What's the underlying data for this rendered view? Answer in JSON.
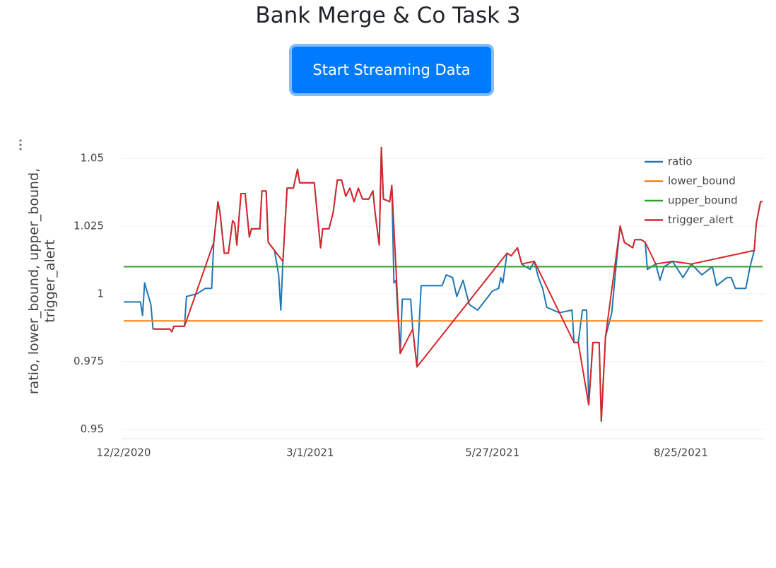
{
  "page": {
    "title": "Bank Merge & Co Task 3",
    "button": "Start Streaming Data"
  },
  "chart_data": {
    "type": "line",
    "y_label": "ratio, lower_bound, upper_bound, trigger_alert",
    "x": [
      "12/2/2020",
      "12/10/2020",
      "12/11/2020",
      "12/12/2020",
      "12/15/2020",
      "12/16/2020",
      "12/24/2020",
      "12/25/2020",
      "12/26/2020",
      "12/31/2020",
      "1/1/2021",
      "1/6/2021",
      "1/10/2021",
      "1/13/2021",
      "1/14/2021",
      "1/16/2021",
      "1/17/2021",
      "1/19/2021",
      "1/21/2021",
      "1/23/2021",
      "1/24/2021",
      "1/25/2021",
      "1/27/2021",
      "1/29/2021",
      "1/31/2021",
      "2/1/2021",
      "2/5/2021",
      "2/6/2021",
      "2/8/2021",
      "2/9/2021",
      "2/12/2021",
      "2/14/2021",
      "2/15/2021",
      "2/16/2021",
      "2/18/2021",
      "2/21/2021",
      "2/23/2021",
      "2/24/2021",
      "3/3/2021",
      "3/6/2021",
      "3/7/2021",
      "3/10/2021",
      "3/12/2021",
      "3/14/2021",
      "3/16/2021",
      "3/18/2021",
      "3/20/2021",
      "3/22/2021",
      "3/24/2021",
      "3/26/2021",
      "3/29/2021",
      "3/31/2021",
      "4/1/2021",
      "4/3/2021",
      "4/4/2021",
      "4/5/2021",
      "4/8/2021",
      "4/9/2021",
      "4/10/2021",
      "4/11/2021",
      "4/13/2021",
      "4/14/2021",
      "4/18/2021",
      "4/19/2021",
      "4/21/2021",
      "4/23/2021",
      "5/3/2021",
      "5/5/2021",
      "5/8/2021",
      "5/10/2021",
      "5/13/2021",
      "5/16/2021",
      "5/20/2021",
      "5/22/2021",
      "5/27/2021",
      "5/30/2021",
      "5/31/2021",
      "6/1/2021",
      "6/3/2021",
      "6/5/2021",
      "6/8/2021",
      "6/10/2021",
      "6/14/2021",
      "6/16/2021",
      "6/18/2021",
      "6/20/2021",
      "6/22/2021",
      "6/28/2021",
      "7/4/2021",
      "7/5/2021",
      "7/7/2021",
      "7/9/2021",
      "7/11/2021",
      "7/12/2021",
      "7/14/2021",
      "7/17/2021",
      "7/18/2021",
      "7/20/2021",
      "7/23/2021",
      "7/25/2021",
      "7/27/2021",
      "7/29/2021",
      "8/2/2021",
      "8/3/2021",
      "8/6/2021",
      "8/8/2021",
      "8/9/2021",
      "8/13/2021",
      "8/15/2021",
      "8/17/2021",
      "8/21/2021",
      "8/26/2021",
      "8/30/2021",
      "9/4/2021",
      "9/9/2021",
      "9/11/2021",
      "9/16/2021",
      "9/18/2021",
      "9/20/2021",
      "9/25/2021",
      "9/27/2021",
      "9/29/2021",
      "9/30/2021",
      "10/2/2021",
      "10/3/2021"
    ],
    "series": [
      {
        "name": "ratio",
        "color": "#1f77b4",
        "values": [
          0.997,
          0.997,
          0.992,
          1.004,
          0.996,
          0.987,
          0.987,
          0.986,
          0.988,
          0.988,
          0.999,
          1.0,
          1.002,
          1.002,
          1.019,
          1.034,
          1.03,
          1.015,
          1.015,
          1.027,
          1.026,
          1.018,
          1.037,
          1.037,
          1.021,
          1.024,
          1.024,
          1.038,
          1.038,
          1.019,
          1.016,
          1.007,
          0.994,
          1.012,
          1.039,
          1.039,
          1.046,
          1.041,
          1.041,
          1.017,
          1.024,
          1.024,
          1.03,
          1.042,
          1.042,
          1.036,
          1.039,
          1.034,
          1.039,
          1.035,
          1.035,
          1.038,
          1.03,
          1.018,
          1.054,
          1.035,
          1.034,
          1.04,
          1.004,
          1.005,
          0.978,
          0.998,
          0.998,
          0.987,
          0.973,
          1.003,
          1.003,
          1.007,
          1.006,
          0.999,
          1.005,
          0.996,
          0.994,
          0.996,
          1.001,
          1.002,
          1.006,
          1.004,
          1.015,
          1.014,
          1.017,
          1.011,
          1.009,
          1.012,
          1.006,
          1.002,
          0.995,
          0.993,
          0.994,
          0.982,
          0.982,
          0.994,
          0.994,
          0.959,
          0.982,
          0.982,
          0.953,
          0.984,
          0.993,
          1.01,
          1.025,
          1.019,
          1.017,
          1.02,
          1.02,
          1.019,
          1.009,
          1.011,
          1.005,
          1.01,
          1.012,
          1.006,
          1.011,
          1.007,
          1.01,
          1.003,
          1.006,
          1.006,
          1.002,
          1.002,
          1.01,
          1.016,
          1.026,
          1.034,
          1.034
        ]
      },
      {
        "name": "lower_bound",
        "color": "#ff7f0e",
        "x": [
          "12/2/2020",
          "10/3/2021"
        ],
        "values": [
          0.99,
          0.99
        ]
      },
      {
        "name": "upper_bound",
        "color": "#2ca02c",
        "x": [
          "12/2/2020",
          "10/3/2021"
        ],
        "values": [
          1.01,
          1.01
        ]
      },
      {
        "name": "trigger_alert",
        "color": "#d62728",
        "x": [
          "12/16/2020",
          "12/24/2020",
          "12/25/2020",
          "12/26/2020",
          "12/31/2020",
          "1/14/2021",
          "1/16/2021",
          "1/17/2021",
          "1/19/2021",
          "1/21/2021",
          "1/23/2021",
          "1/24/2021",
          "1/25/2021",
          "1/27/2021",
          "1/29/2021",
          "1/31/2021",
          "2/1/2021",
          "2/5/2021",
          "2/6/2021",
          "2/8/2021",
          "2/9/2021",
          "2/12/2021",
          "2/16/2021",
          "2/18/2021",
          "2/21/2021",
          "2/23/2021",
          "2/24/2021",
          "3/3/2021",
          "3/6/2021",
          "3/7/2021",
          "3/10/2021",
          "3/12/2021",
          "3/14/2021",
          "3/16/2021",
          "3/18/2021",
          "3/20/2021",
          "3/22/2021",
          "3/24/2021",
          "3/26/2021",
          "3/29/2021",
          "3/31/2021",
          "4/1/2021",
          "4/3/2021",
          "4/4/2021",
          "4/5/2021",
          "4/8/2021",
          "4/9/2021",
          "4/13/2021",
          "4/19/2021",
          "4/21/2021",
          "6/3/2021",
          "6/5/2021",
          "6/8/2021",
          "6/10/2021",
          "6/16/2021",
          "7/5/2021",
          "7/7/2021",
          "7/12/2021",
          "7/14/2021",
          "7/17/2021",
          "7/18/2021",
          "7/20/2021",
          "7/27/2021",
          "7/29/2021",
          "8/2/2021",
          "8/3/2021",
          "8/6/2021",
          "8/8/2021",
          "8/13/2021",
          "8/21/2021",
          "8/30/2021",
          "9/29/2021",
          "9/30/2021",
          "10/2/2021",
          "10/3/2021"
        ],
        "values": [
          0.987,
          0.987,
          0.986,
          0.988,
          0.988,
          1.019,
          1.034,
          1.03,
          1.015,
          1.015,
          1.027,
          1.026,
          1.018,
          1.037,
          1.037,
          1.021,
          1.024,
          1.024,
          1.038,
          1.038,
          1.019,
          1.016,
          1.012,
          1.039,
          1.039,
          1.046,
          1.041,
          1.041,
          1.017,
          1.024,
          1.024,
          1.03,
          1.042,
          1.042,
          1.036,
          1.039,
          1.034,
          1.039,
          1.035,
          1.035,
          1.038,
          1.03,
          1.018,
          1.054,
          1.035,
          1.034,
          1.04,
          0.978,
          0.987,
          0.973,
          1.015,
          1.014,
          1.017,
          1.011,
          1.012,
          0.982,
          0.982,
          0.959,
          0.982,
          0.982,
          0.953,
          0.984,
          1.025,
          1.019,
          1.017,
          1.02,
          1.02,
          1.019,
          1.011,
          1.012,
          1.011,
          1.016,
          1.026,
          1.034,
          1.034
        ]
      }
    ],
    "xlim": [
      "12/2/2020",
      "10/4/2021"
    ],
    "xticks": [
      "12/2/2020",
      "3/1/2021",
      "5/27/2021",
      "8/25/2021"
    ],
    "ylim": [
      0.9465,
      1.055
    ],
    "yticks": [
      0.95,
      0.975,
      1,
      1.025,
      1.05
    ],
    "grid": true,
    "legend": "top-right"
  }
}
